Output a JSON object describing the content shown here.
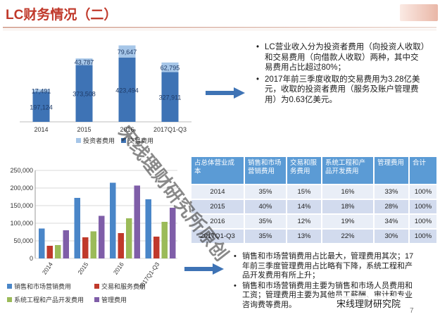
{
  "header": {
    "title": "LC财务情况（二）"
  },
  "bullets_top": [
    "LC营业收入分为投资者费用（向投资人收取）和交易费用（向借款人收取）两种，其中交易费用占比超过80%；",
    "2017年前三季度收取的交易费用为3.28亿美元，收取的投资者费用（服务及账户管理费用）为0.63亿美元。"
  ],
  "bullets_bottom": [
    "销售和市场营销费用占比最大，管理费用其次；17年前三季度管理费用占比略有下降，系统工程和产品开发费用有所上升；",
    "销售和市场营销费用主要为销售和市场人员费用和工资；管理费用主要为其他员工薪酬、审计和专业咨询费等费用。"
  ],
  "table": {
    "headers": [
      "占总体营业成本",
      "销售和市场营销费用",
      "交易和服务费用",
      "系统工程和产品开发费用",
      "管理费用",
      "合计"
    ],
    "rows": [
      [
        "2014",
        "35%",
        "15%",
        "16%",
        "33%",
        "100%"
      ],
      [
        "2015",
        "40%",
        "14%",
        "18%",
        "28%",
        "100%"
      ],
      [
        "2016",
        "35%",
        "12%",
        "19%",
        "34%",
        "100%"
      ],
      [
        "2017Q1-Q3",
        "35%",
        "13%",
        "22%",
        "30%",
        "100%"
      ]
    ]
  },
  "watermark": {
    "main": "宋线理财研究所原创",
    "badge": "宋线理财研究院"
  },
  "page_number": "7",
  "colors": {
    "investor": "#a6c6e8",
    "transaction": "#3e73b5",
    "mkt": "#4a86c8",
    "svc": "#c0392b",
    "eng": "#9bbb59",
    "admin": "#7f5ea8"
  },
  "chart_data": [
    {
      "type": "bar",
      "stacked": true,
      "categories": [
        "2014",
        "2015",
        "2016",
        "2017Q1-Q3"
      ],
      "series": [
        {
          "name": "投资者费用",
          "values": [
            17491,
            43787,
            79647,
            62795
          ],
          "labels": [
            "17,491",
            "43,787",
            "79,647",
            "62,795"
          ]
        },
        {
          "name": "交易费用",
          "values": [
            197124,
            373508,
            423494,
            327911
          ],
          "labels": [
            "197,124",
            "373,508",
            "423,494",
            "327,911"
          ]
        }
      ],
      "legend": "bottom",
      "ylim": [
        0,
        510000
      ]
    },
    {
      "type": "bar",
      "categories": [
        "2014",
        "2015",
        "2016",
        "2017Q1-Q3"
      ],
      "series": [
        {
          "name": "销售和市场营销费用",
          "values": [
            85000,
            172000,
            215000,
            168000
          ]
        },
        {
          "name": "交易和服务费用",
          "values": [
            36000,
            60000,
            72000,
            62000
          ]
        },
        {
          "name": "系统工程和产品开发费用",
          "values": [
            38000,
            77000,
            114000,
            104000
          ]
        },
        {
          "name": "管理费用",
          "values": [
            80000,
            121000,
            207000,
            144000
          ]
        }
      ],
      "yticks": [
        "0",
        "50,000",
        "100,000",
        "150,000",
        "200,000",
        "250,000"
      ],
      "ylim": [
        0,
        250000
      ],
      "legend": "bottom",
      "grid": true
    }
  ]
}
